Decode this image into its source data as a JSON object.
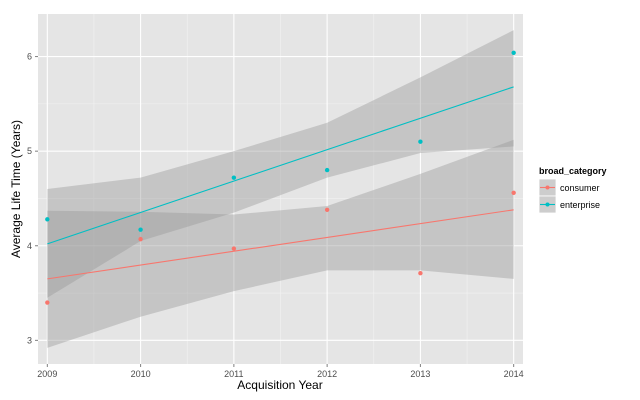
{
  "chart_data": {
    "type": "scatter",
    "xlabel": "Acquisition Year",
    "ylabel": "Average Life Time (Years)",
    "xlim": [
      2008.9,
      2014.1
    ],
    "ylim": [
      2.75,
      6.45
    ],
    "x_ticks": [
      2009,
      2010,
      2011,
      2012,
      2013,
      2014
    ],
    "y_ticks": [
      3,
      4,
      5,
      6
    ],
    "grid": true,
    "legend_title": "broad_category",
    "legend_position": "right",
    "series": [
      {
        "name": "consumer",
        "color": "#F8766D",
        "points": [
          {
            "x": 2009,
            "y": 3.4
          },
          {
            "x": 2010,
            "y": 4.07
          },
          {
            "x": 2011,
            "y": 3.97
          },
          {
            "x": 2012,
            "y": 4.38
          },
          {
            "x": 2013,
            "y": 3.71
          },
          {
            "x": 2014,
            "y": 4.56
          }
        ],
        "fit": {
          "x_start": 2009,
          "y_start": 3.65,
          "x_end": 2014,
          "y_end": 4.38
        },
        "confidence_band": {
          "x": [
            2009,
            2010,
            2011,
            2012,
            2013,
            2014
          ],
          "lower": [
            2.92,
            3.25,
            3.52,
            3.74,
            3.74,
            3.65
          ],
          "upper": [
            4.37,
            4.36,
            4.33,
            4.42,
            4.76,
            5.12
          ]
        }
      },
      {
        "name": "enterprise",
        "color": "#00BFC4",
        "points": [
          {
            "x": 2009,
            "y": 4.28
          },
          {
            "x": 2010,
            "y": 4.17
          },
          {
            "x": 2011,
            "y": 4.72
          },
          {
            "x": 2012,
            "y": 4.8
          },
          {
            "x": 2013,
            "y": 5.1
          },
          {
            "x": 2014,
            "y": 6.04
          }
        ],
        "fit": {
          "x_start": 2009,
          "y_start": 4.02,
          "x_end": 2014,
          "y_end": 5.68
        },
        "confidence_band": {
          "x": [
            2009,
            2010,
            2011,
            2012,
            2013,
            2014
          ],
          "lower": [
            3.45,
            4.05,
            4.35,
            4.72,
            4.98,
            5.05
          ],
          "upper": [
            4.6,
            4.72,
            5.0,
            5.3,
            5.78,
            6.28
          ]
        }
      }
    ]
  }
}
